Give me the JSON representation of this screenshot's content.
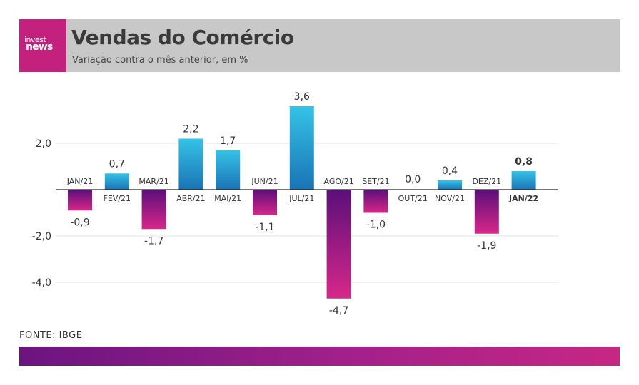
{
  "header": {
    "logo_line1": "invest",
    "logo_line2": "news",
    "title": "Vendas do Comércio",
    "subtitle": "Variação contra o mês anterior, em %"
  },
  "source": "FONTE: IBGE",
  "colors": {
    "positive_top": "#35c3e6",
    "positive_bottom": "#1a73b6",
    "negative_top": "#5a0f7a",
    "negative_bottom": "#d8278a",
    "header_bg": "#c8c8c8",
    "logo_bg": "#c4207e"
  },
  "chart_data": {
    "type": "bar",
    "categories": [
      "JAN/21",
      "FEV/21",
      "MAR/21",
      "ABR/21",
      "MAI/21",
      "JUN/21",
      "JUL/21",
      "AGO/21",
      "SET/21",
      "OUT/21",
      "NOV/21",
      "DEZ/21",
      "JAN/22"
    ],
    "values": [
      -0.9,
      0.7,
      -1.7,
      2.2,
      1.7,
      -1.1,
      3.6,
      -4.7,
      -1.0,
      0.0,
      0.4,
      -1.9,
      0.8
    ],
    "value_labels": [
      "-0,9",
      "0,7",
      "-1,7",
      "2,2",
      "1,7",
      "-1,1",
      "3,6",
      "-4,7",
      "-1,0",
      "0,0",
      "0,4",
      "-1,9",
      "0,8"
    ],
    "highlight": "JAN/22",
    "yticks": [
      2.0,
      -2.0,
      -4.0
    ],
    "ytick_labels": [
      "2,0",
      "-2,0",
      "-4,0"
    ],
    "ylim": [
      -4.7,
      3.6
    ],
    "grid": true,
    "title": "Vendas do Comércio",
    "xlabel": "",
    "ylabel": ""
  }
}
